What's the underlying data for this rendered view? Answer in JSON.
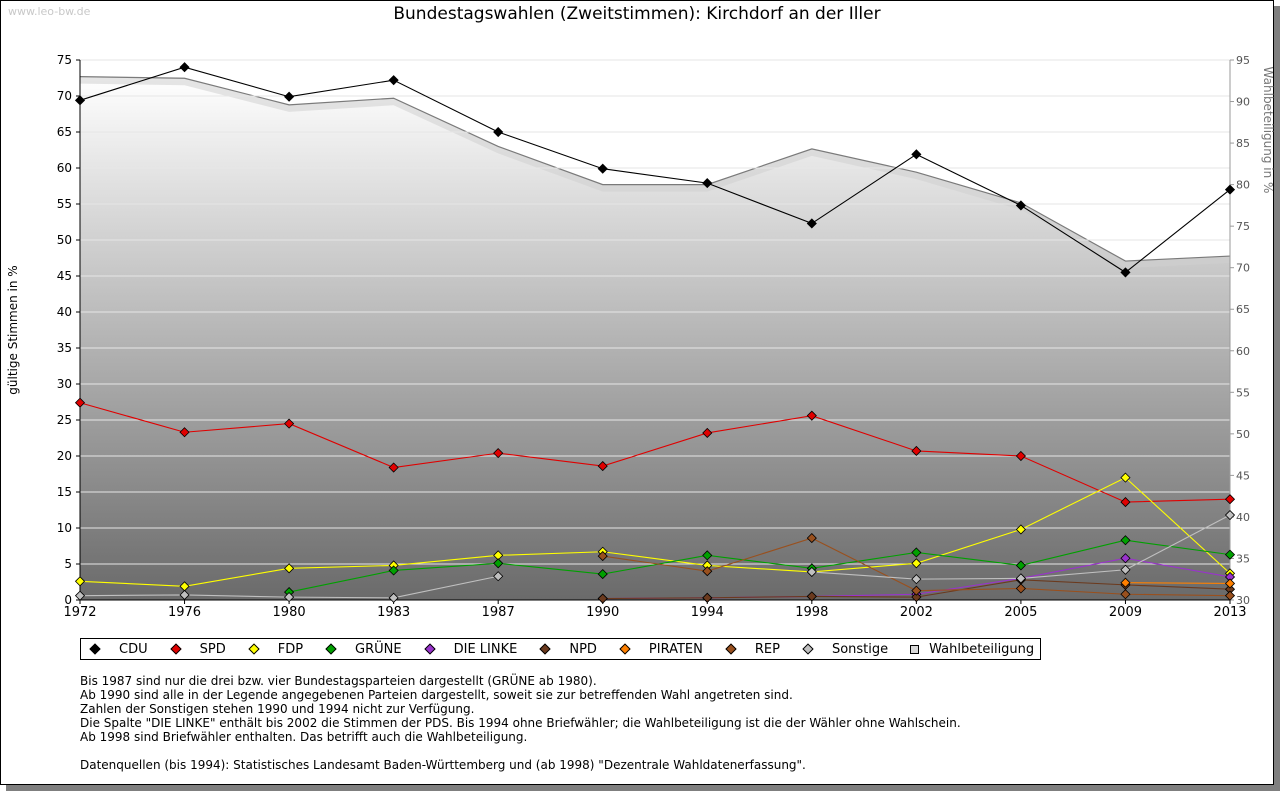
{
  "watermark": "www.leo-bw.de",
  "title": "Bundestagswahlen (Zweitstimmen): Kirchdorf an der Iller",
  "notes": [
    "Bis 1987 sind nur die drei bzw. vier Bundestagsparteien dargestellt (GRÜNE ab 1980).",
    "Ab 1990 sind alle in der Legende angegebenen Parteien dargestellt, soweit sie zur betreffenden Wahl angetreten sind.",
    "Zahlen der Sonstigen stehen 1990 und 1994 nicht zur Verfügung.",
    "Die Spalte \"DIE LINKE\" enthält bis 2002 die Stimmen der PDS. Bis 1994 ohne Briefwähler; die Wahlbeteiligung ist die der Wähler ohne Wahlschein.",
    "Ab 1998 sind Briefwähler enthalten. Das betrifft auch die Wahlbeteiligung."
  ],
  "source": "Datenquellen (bis 1994): Statistisches Landesamt Baden-Württemberg und (ab 1998) \"Dezentrale Wahldatenerfassung\".",
  "chart_data": {
    "type": "line",
    "title": "Bundestagswahlen (Zweitstimmen): Kirchdorf an der Iller",
    "ylabel": "gültige Stimmen in %",
    "y2label": "Wahlbeteiligung in %",
    "ylim": [
      0,
      75
    ],
    "y2lim": [
      30,
      95
    ],
    "yticks": [
      0,
      5,
      10,
      15,
      20,
      25,
      30,
      35,
      40,
      45,
      50,
      55,
      60,
      65,
      70,
      75
    ],
    "y2ticks": [
      30,
      35,
      40,
      45,
      50,
      55,
      60,
      65,
      70,
      75,
      80,
      85,
      90,
      95
    ],
    "grid": true,
    "legend_position": "bottom",
    "x": [
      "1972",
      "1976",
      "1980",
      "1983",
      "1987",
      "1990",
      "1994",
      "1998",
      "2002",
      "2005",
      "2009",
      "2013"
    ],
    "turnout": {
      "name": "Wahlbeteiligung",
      "axis": "right",
      "values": [
        93.0,
        92.8,
        89.6,
        90.4,
        84.6,
        80.0,
        80.0,
        84.3,
        81.5,
        77.8,
        70.8,
        71.4
      ]
    },
    "series": [
      {
        "name": "CDU",
        "color": "#000000",
        "values": [
          69.4,
          74.0,
          69.9,
          72.2,
          65.0,
          59.9,
          57.9,
          52.3,
          61.9,
          54.8,
          45.5,
          57.0
        ]
      },
      {
        "name": "SPD",
        "color": "#e00000",
        "values": [
          27.4,
          23.3,
          24.5,
          18.4,
          20.4,
          18.6,
          23.2,
          25.6,
          20.7,
          20.0,
          13.6,
          14.0
        ]
      },
      {
        "name": "FDP",
        "color": "#ffff00",
        "values": [
          2.6,
          1.9,
          4.4,
          4.8,
          6.2,
          6.7,
          4.8,
          3.9,
          5.1,
          9.8,
          17.0,
          3.7
        ]
      },
      {
        "name": "GRÜNE",
        "color": "#00a000",
        "values": [
          null,
          null,
          1.1,
          4.1,
          5.1,
          3.6,
          6.2,
          4.4,
          6.6,
          4.8,
          8.3,
          6.3
        ]
      },
      {
        "name": "DIE LINKE",
        "color": "#9933cc",
        "values": [
          null,
          null,
          null,
          null,
          null,
          0.2,
          0.3,
          0.5,
          0.8,
          3.0,
          5.8,
          3.2
        ]
      },
      {
        "name": "NPD",
        "color": "#6b3a1e",
        "values": [
          null,
          null,
          null,
          null,
          null,
          0.2,
          0.3,
          0.5,
          0.4,
          2.8,
          2.1,
          1.5
        ]
      },
      {
        "name": "PIRATEN",
        "color": "#ff8000",
        "values": [
          null,
          null,
          null,
          null,
          null,
          null,
          null,
          null,
          null,
          null,
          2.4,
          2.3
        ]
      },
      {
        "name": "REP",
        "color": "#99501e",
        "values": [
          null,
          null,
          null,
          null,
          null,
          6.1,
          4.0,
          8.6,
          1.3,
          1.6,
          0.8,
          0.6
        ]
      },
      {
        "name": "Sonstige",
        "color": "#c0c0c0",
        "values": [
          0.6,
          0.7,
          0.4,
          0.3,
          3.3,
          null,
          null,
          3.9,
          2.9,
          3.0,
          4.2,
          11.8
        ]
      }
    ]
  },
  "legend": {
    "items": [
      {
        "label": "CDU",
        "color": "#000000",
        "shape": "diamond"
      },
      {
        "label": "SPD",
        "color": "#e00000",
        "shape": "diamond"
      },
      {
        "label": "FDP",
        "color": "#ffff00",
        "shape": "diamond"
      },
      {
        "label": "GRÜNE",
        "color": "#00a000",
        "shape": "diamond"
      },
      {
        "label": "DIE LINKE",
        "color": "#9933cc",
        "shape": "diamond"
      },
      {
        "label": "NPD",
        "color": "#6b3a1e",
        "shape": "diamond"
      },
      {
        "label": "PIRATEN",
        "color": "#ff8000",
        "shape": "diamond"
      },
      {
        "label": "REP",
        "color": "#99501e",
        "shape": "diamond"
      },
      {
        "label": "Sonstige",
        "color": "#c0c0c0",
        "shape": "diamond"
      },
      {
        "label": "Wahlbeteiligung",
        "color": "#d9d9d9",
        "shape": "square"
      }
    ]
  }
}
